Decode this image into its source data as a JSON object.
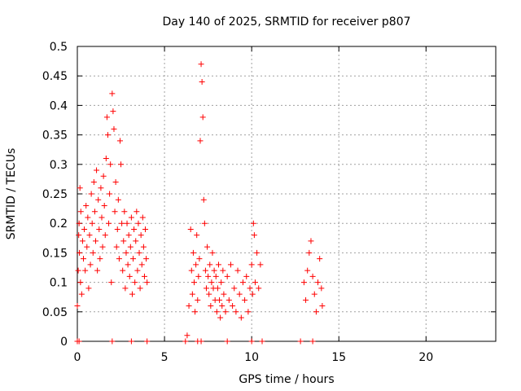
{
  "chart_data": {
    "type": "scatter",
    "title": "Day 140 of 2025, SRMTID for receiver p807",
    "xlabel": "GPS time / hours",
    "ylabel": "SRMTID / TECUs",
    "xlim": [
      0,
      24
    ],
    "ylim": [
      0,
      0.5
    ],
    "xticks": [
      0,
      5,
      10,
      15,
      20
    ],
    "xtick_labels": [
      "0",
      "5",
      "10",
      "15",
      "20"
    ],
    "yticks": [
      0,
      0.05,
      0.1,
      0.15,
      0.2,
      0.25,
      0.3,
      0.35,
      0.4,
      0.45,
      0.5
    ],
    "ytick_labels": [
      "0",
      "0.05",
      "0.1",
      "0.15",
      "0.2",
      "0.25",
      "0.3",
      "0.35",
      "0.4",
      "0.45",
      "0.5"
    ],
    "grid": true,
    "marker": "+",
    "series": [
      {
        "name": "SRMTID",
        "color": "#ff0000",
        "points": [
          [
            0.0,
            0.06
          ],
          [
            0.05,
            0.12
          ],
          [
            0.08,
            0.18
          ],
          [
            0.1,
            0.2
          ],
          [
            0.12,
            0.15
          ],
          [
            0.15,
            0.26
          ],
          [
            0.18,
            0.1
          ],
          [
            0.2,
            0.22
          ],
          [
            0.25,
            0.08
          ],
          [
            0.3,
            0.17
          ],
          [
            0.35,
            0.14
          ],
          [
            0.4,
            0.19
          ],
          [
            0.45,
            0.12
          ],
          [
            0.5,
            0.23
          ],
          [
            0.55,
            0.16
          ],
          [
            0.6,
            0.21
          ],
          [
            0.65,
            0.09
          ],
          [
            0.7,
            0.18
          ],
          [
            0.75,
            0.13
          ],
          [
            0.8,
            0.25
          ],
          [
            0.85,
            0.2
          ],
          [
            0.9,
            0.15
          ],
          [
            0.95,
            0.27
          ],
          [
            1.0,
            0.22
          ],
          [
            1.05,
            0.17
          ],
          [
            1.1,
            0.29
          ],
          [
            1.15,
            0.12
          ],
          [
            1.2,
            0.24
          ],
          [
            1.25,
            0.19
          ],
          [
            1.3,
            0.14
          ],
          [
            1.35,
            0.26
          ],
          [
            1.4,
            0.21
          ],
          [
            1.45,
            0.16
          ],
          [
            1.5,
            0.28
          ],
          [
            1.55,
            0.23
          ],
          [
            1.6,
            0.18
          ],
          [
            1.65,
            0.31
          ],
          [
            1.7,
            0.38
          ],
          [
            1.75,
            0.35
          ],
          [
            1.8,
            0.2
          ],
          [
            1.85,
            0.25
          ],
          [
            1.9,
            0.3
          ],
          [
            1.95,
            0.1
          ],
          [
            2.0,
            0.42
          ],
          [
            2.05,
            0.39
          ],
          [
            2.1,
            0.36
          ],
          [
            2.15,
            0.22
          ],
          [
            2.2,
            0.27
          ],
          [
            2.25,
            0.16
          ],
          [
            2.3,
            0.19
          ],
          [
            2.35,
            0.24
          ],
          [
            2.4,
            0.14
          ],
          [
            2.45,
            0.34
          ],
          [
            2.5,
            0.3
          ],
          [
            2.55,
            0.2
          ],
          [
            2.6,
            0.12
          ],
          [
            2.65,
            0.17
          ],
          [
            2.7,
            0.22
          ],
          [
            2.75,
            0.09
          ],
          [
            2.8,
            0.15
          ],
          [
            2.85,
            0.2
          ],
          [
            2.9,
            0.13
          ],
          [
            2.95,
            0.18
          ],
          [
            3.0,
            0.11
          ],
          [
            3.05,
            0.16
          ],
          [
            3.1,
            0.21
          ],
          [
            3.15,
            0.08
          ],
          [
            3.2,
            0.14
          ],
          [
            3.25,
            0.19
          ],
          [
            3.3,
            0.1
          ],
          [
            3.35,
            0.17
          ],
          [
            3.4,
            0.22
          ],
          [
            3.45,
            0.12
          ],
          [
            3.5,
            0.2
          ],
          [
            3.55,
            0.15
          ],
          [
            3.6,
            0.09
          ],
          [
            3.65,
            0.18
          ],
          [
            3.7,
            0.13
          ],
          [
            3.75,
            0.21
          ],
          [
            3.8,
            0.16
          ],
          [
            3.85,
            0.11
          ],
          [
            3.9,
            0.19
          ],
          [
            3.95,
            0.14
          ],
          [
            4.0,
            0.1
          ],
          [
            6.3,
            0.01
          ],
          [
            6.4,
            0.06
          ],
          [
            6.5,
            0.19
          ],
          [
            6.55,
            0.12
          ],
          [
            6.6,
            0.08
          ],
          [
            6.65,
            0.15
          ],
          [
            6.7,
            0.1
          ],
          [
            6.75,
            0.05
          ],
          [
            6.8,
            0.13
          ],
          [
            6.85,
            0.18
          ],
          [
            6.9,
            0.07
          ],
          [
            6.95,
            0.11
          ],
          [
            7.0,
            0.14
          ],
          [
            7.05,
            0.34
          ],
          [
            7.1,
            0.47
          ],
          [
            7.15,
            0.44
          ],
          [
            7.2,
            0.38
          ],
          [
            7.25,
            0.24
          ],
          [
            7.3,
            0.2
          ],
          [
            7.35,
            0.12
          ],
          [
            7.4,
            0.09
          ],
          [
            7.45,
            0.16
          ],
          [
            7.5,
            0.11
          ],
          [
            7.55,
            0.08
          ],
          [
            7.6,
            0.13
          ],
          [
            7.65,
            0.06
          ],
          [
            7.7,
            0.1
          ],
          [
            7.75,
            0.15
          ],
          [
            7.8,
            0.09
          ],
          [
            7.85,
            0.12
          ],
          [
            7.9,
            0.07
          ],
          [
            7.95,
            0.11
          ],
          [
            8.0,
            0.05
          ],
          [
            8.05,
            0.09
          ],
          [
            8.1,
            0.13
          ],
          [
            8.15,
            0.07
          ],
          [
            8.2,
            0.04
          ],
          [
            8.25,
            0.1
          ],
          [
            8.3,
            0.06
          ],
          [
            8.35,
            0.12
          ],
          [
            8.4,
            0.08
          ],
          [
            8.5,
            0.05
          ],
          [
            8.6,
            0.11
          ],
          [
            8.7,
            0.07
          ],
          [
            8.8,
            0.13
          ],
          [
            8.9,
            0.06
          ],
          [
            9.0,
            0.09
          ],
          [
            9.1,
            0.05
          ],
          [
            9.2,
            0.12
          ],
          [
            9.3,
            0.08
          ],
          [
            9.4,
            0.04
          ],
          [
            9.5,
            0.1
          ],
          [
            9.6,
            0.07
          ],
          [
            9.7,
            0.11
          ],
          [
            9.8,
            0.05
          ],
          [
            9.9,
            0.09
          ],
          [
            10.0,
            0.13
          ],
          [
            10.05,
            0.08
          ],
          [
            10.1,
            0.2
          ],
          [
            10.15,
            0.18
          ],
          [
            10.2,
            0.1
          ],
          [
            10.3,
            0.15
          ],
          [
            10.4,
            0.09
          ],
          [
            10.5,
            0.13
          ],
          [
            13.0,
            0.1
          ],
          [
            13.1,
            0.07
          ],
          [
            13.2,
            0.12
          ],
          [
            13.3,
            0.15
          ],
          [
            13.4,
            0.17
          ],
          [
            13.5,
            0.11
          ],
          [
            13.6,
            0.08
          ],
          [
            13.7,
            0.05
          ],
          [
            13.8,
            0.1
          ],
          [
            13.9,
            0.14
          ],
          [
            14.0,
            0.09
          ],
          [
            14.05,
            0.06
          ],
          [
            0.0,
            0.0
          ],
          [
            0.1,
            0.0
          ],
          [
            2.0,
            0.0
          ],
          [
            3.1,
            0.0
          ],
          [
            4.0,
            0.0
          ],
          [
            6.2,
            0.0
          ],
          [
            6.9,
            0.0
          ],
          [
            7.1,
            0.0
          ],
          [
            8.6,
            0.0
          ],
          [
            10.0,
            0.0
          ],
          [
            10.6,
            0.0
          ],
          [
            12.8,
            0.0
          ],
          [
            13.5,
            0.0
          ]
        ]
      }
    ]
  }
}
